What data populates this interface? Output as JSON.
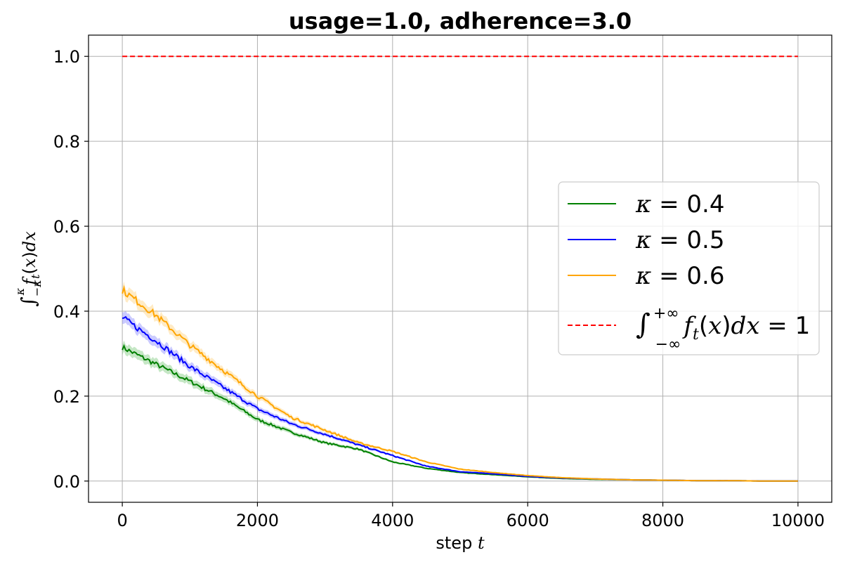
{
  "chart_data": {
    "type": "line",
    "title": "usage=1.0, adherence=3.0",
    "xlabel_text": "step ",
    "xlabel_var": "t",
    "ylabel": "∫_{-κ}^{κ} f_t(x)dx",
    "xlim": [
      -500,
      10500
    ],
    "ylim": [
      -0.05,
      1.05
    ],
    "x_ticks": [
      0,
      2000,
      4000,
      6000,
      8000,
      10000
    ],
    "x_tick_labels": [
      "0",
      "2000",
      "4000",
      "6000",
      "8000",
      "10000"
    ],
    "y_ticks": [
      0.0,
      0.2,
      0.4,
      0.6,
      0.8,
      1.0
    ],
    "y_tick_labels": [
      "0.0",
      "0.2",
      "0.4",
      "0.6",
      "0.8",
      "1.0"
    ],
    "grid": true,
    "legend_position": "center-right",
    "x": [
      0,
      500,
      1000,
      1500,
      2000,
      2500,
      3000,
      3500,
      4000,
      4500,
      5000,
      5500,
      6000,
      6500,
      7000,
      7500,
      8000,
      8500,
      9000,
      9500,
      10000
    ],
    "series": [
      {
        "name": "κ = 0.4",
        "color": "#008000",
        "band_color": "#7fc97f",
        "values": [
          0.315,
          0.275,
          0.235,
          0.195,
          0.145,
          0.115,
          0.09,
          0.075,
          0.045,
          0.03,
          0.02,
          0.015,
          0.01,
          0.006,
          0.004,
          0.003,
          0.002,
          0.001,
          0.001,
          0.0,
          0.0
        ],
        "band_width": 0.012
      },
      {
        "name": "κ = 0.5",
        "color": "#0000ff",
        "band_color": "#8c8cff",
        "values": [
          0.385,
          0.33,
          0.27,
          0.22,
          0.17,
          0.135,
          0.11,
          0.085,
          0.06,
          0.035,
          0.022,
          0.017,
          0.011,
          0.007,
          0.005,
          0.003,
          0.002,
          0.001,
          0.001,
          0.0,
          0.0
        ],
        "band_width": 0.013
      },
      {
        "name": "κ = 0.6",
        "color": "#ffa500",
        "band_color": "#ffd27f",
        "values": [
          0.45,
          0.39,
          0.32,
          0.26,
          0.2,
          0.15,
          0.12,
          0.09,
          0.07,
          0.045,
          0.028,
          0.02,
          0.013,
          0.008,
          0.005,
          0.003,
          0.002,
          0.001,
          0.001,
          0.0,
          0.0
        ],
        "band_width": 0.014
      },
      {
        "name": "∫_{-∞}^{+∞} f_t(x)dx = 1",
        "color": "#ff0000",
        "dashed": true,
        "values": [
          1.0,
          1.0
        ],
        "x": [
          0,
          10000
        ]
      }
    ]
  }
}
